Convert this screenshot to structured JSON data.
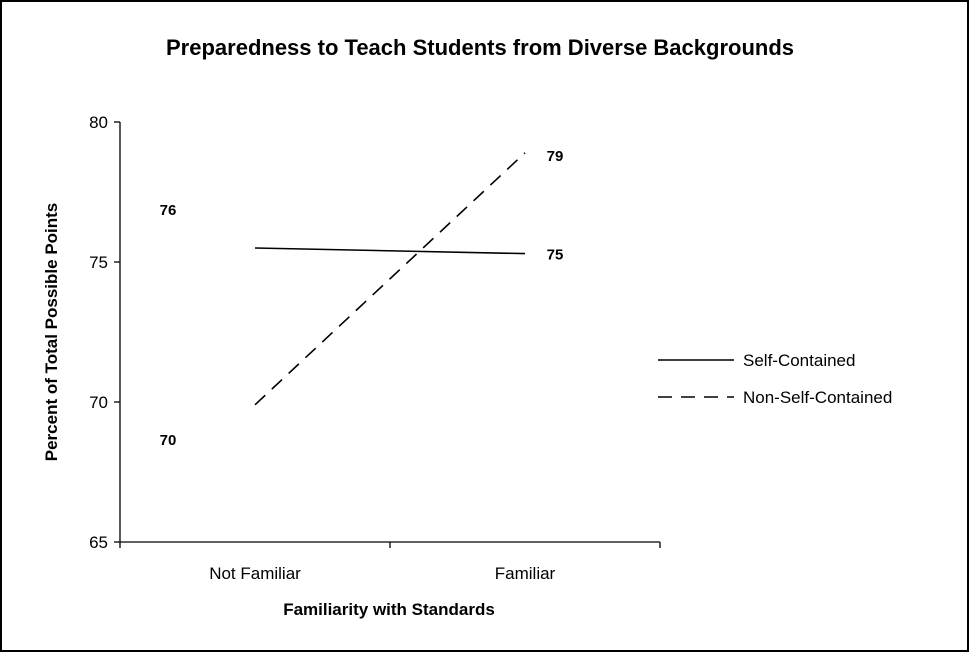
{
  "chart_data": {
    "type": "line",
    "title": "Preparedness to Teach Students from Diverse Backgrounds",
    "xlabel": "Familiarity with Standards",
    "ylabel": "Percent of Total Possible Points",
    "categories": [
      "Not Familiar",
      "Familiar"
    ],
    "ylim": [
      65,
      80
    ],
    "yticks": [
      65,
      70,
      75,
      80
    ],
    "grid": false,
    "legend_position": "right",
    "series": [
      {
        "name": "Self-Contained",
        "values": [
          75.5,
          75.3
        ],
        "data_labels": [
          "76",
          "75"
        ],
        "line_style": "solid",
        "color": "#000000"
      },
      {
        "name": "Non-Self-Contained",
        "values": [
          69.9,
          78.9
        ],
        "data_labels": [
          "70",
          "79"
        ],
        "line_style": "dashed",
        "color": "#000000"
      }
    ]
  }
}
